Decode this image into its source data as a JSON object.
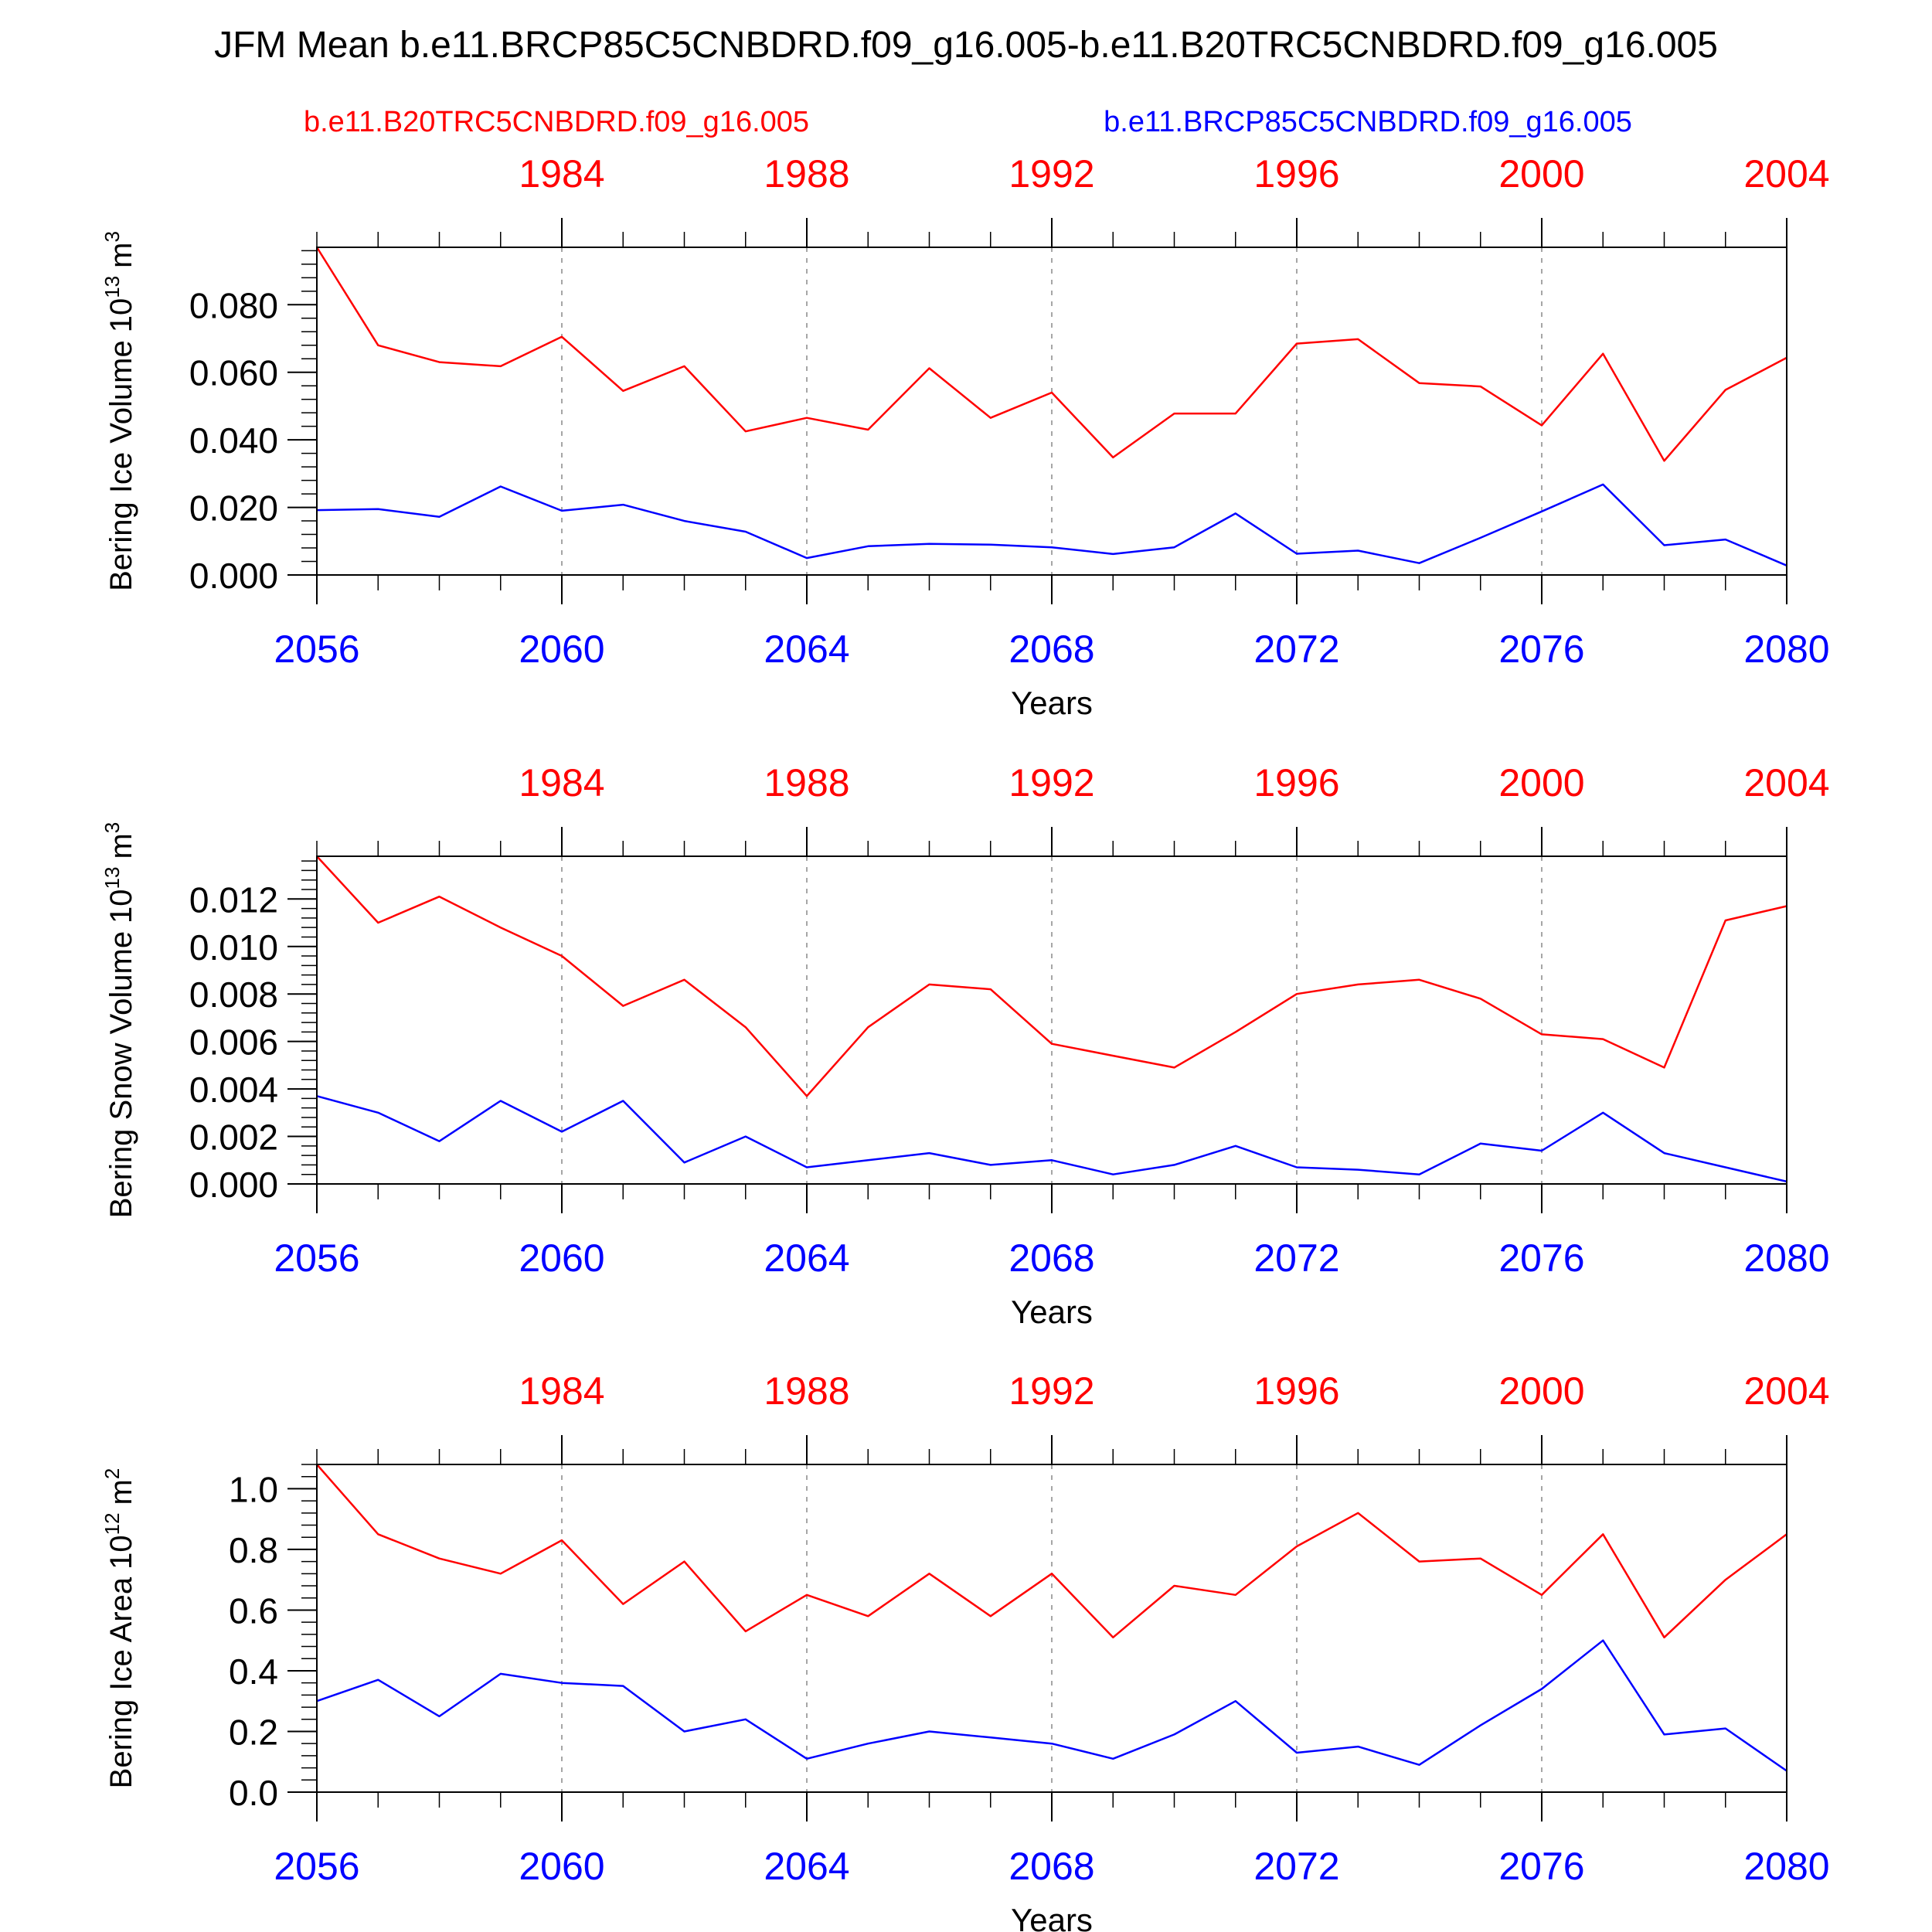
{
  "page_title": "JFM Mean b.e11.BRCP85C5CNBDRD.f09_g16.005-b.e11.B20TRC5CNBDRD.f09_g16.005",
  "legend": {
    "left_label": "b.e11.B20TRC5CNBDRD.f09_g16.005",
    "right_label": "b.e11.BRCP85C5CNBDRD.f09_g16.005"
  },
  "colors": {
    "historical": "#ff0000",
    "future": "#0000ff",
    "axis": "#000000",
    "grid": "#888888"
  },
  "chart_data": [
    {
      "type": "line",
      "title": "",
      "ylabel": "Bering Ice Volume",
      "ylabel_unit_base": "10",
      "ylabel_unit_exp": "13",
      "ylabel_unit_tail": "m",
      "ylabel_unit_tail_exp": "3",
      "xlabel": "Years",
      "xlim": [
        2056,
        2080
      ],
      "ylim": [
        0,
        0.097
      ],
      "ytick_values": [
        0,
        0.02,
        0.04,
        0.06,
        0.08
      ],
      "ytick_labels": [
        "0.000",
        "0.020",
        "0.040",
        "0.060",
        "0.080"
      ],
      "yminor_step": 0.004,
      "x_bottom_ticks": [
        2056,
        2060,
        2064,
        2068,
        2072,
        2076,
        2080
      ],
      "x_bottom_labels": [
        "2056",
        "2060",
        "2064",
        "2068",
        "2072",
        "2076",
        "2080"
      ],
      "x_top_labels": [
        "1984",
        "1988",
        "1992",
        "1996",
        "2000",
        "2004"
      ],
      "x_top_offset": 76,
      "grid_x": [
        2060,
        2064,
        2068,
        2072,
        2076
      ],
      "x": [
        2056,
        2057,
        2058,
        2059,
        2060,
        2061,
        2062,
        2063,
        2064,
        2065,
        2066,
        2067,
        2068,
        2069,
        2070,
        2071,
        2072,
        2073,
        2074,
        2075,
        2076,
        2077,
        2078,
        2079,
        2080
      ],
      "series": [
        {
          "name": "b.e11.B20TRC5CNBDRD.f09_g16.005",
          "color": "#ff0000",
          "values": [
            0.097,
            0.068,
            0.063,
            0.0618,
            0.0705,
            0.0545,
            0.0618,
            0.0425,
            0.0465,
            0.043,
            0.0612,
            0.0465,
            0.054,
            0.0348,
            0.0478,
            0.0478,
            0.0685,
            0.0698,
            0.0568,
            0.0558,
            0.0443,
            0.0655,
            0.0338,
            0.0548,
            0.0643
          ]
        },
        {
          "name": "b.e11.BRCP85C5CNBDRD.f09_g16.005",
          "color": "#0000ff",
          "values": [
            0.0192,
            0.0195,
            0.0172,
            0.0262,
            0.019,
            0.0208,
            0.016,
            0.0128,
            0.005,
            0.0085,
            0.0092,
            0.009,
            0.0082,
            0.0062,
            0.0082,
            0.0182,
            0.0063,
            0.0072,
            0.0035,
            0.011,
            0.0188,
            0.0268,
            0.0088,
            0.0105,
            0.0028
          ]
        }
      ]
    },
    {
      "type": "line",
      "title": "",
      "ylabel": "Bering Snow Volume",
      "ylabel_unit_base": "10",
      "ylabel_unit_exp": "13",
      "ylabel_unit_tail": "m",
      "ylabel_unit_tail_exp": "3",
      "xlabel": "Years",
      "xlim": [
        2056,
        2080
      ],
      "ylim": [
        0,
        0.0138
      ],
      "ytick_values": [
        0,
        0.002,
        0.004,
        0.006,
        0.008,
        0.01,
        0.012
      ],
      "ytick_labels": [
        "0.000",
        "0.002",
        "0.004",
        "0.006",
        "0.008",
        "0.010",
        "0.012"
      ],
      "yminor_step": 0.0004,
      "x_bottom_ticks": [
        2056,
        2060,
        2064,
        2068,
        2072,
        2076,
        2080
      ],
      "x_bottom_labels": [
        "2056",
        "2060",
        "2064",
        "2068",
        "2072",
        "2076",
        "2080"
      ],
      "x_top_labels": [
        "1984",
        "1988",
        "1992",
        "1996",
        "2000",
        "2004"
      ],
      "x_top_offset": 76,
      "grid_x": [
        2060,
        2064,
        2068,
        2072,
        2076
      ],
      "x": [
        2056,
        2057,
        2058,
        2059,
        2060,
        2061,
        2062,
        2063,
        2064,
        2065,
        2066,
        2067,
        2068,
        2069,
        2070,
        2071,
        2072,
        2073,
        2074,
        2075,
        2076,
        2077,
        2078,
        2079,
        2080
      ],
      "series": [
        {
          "name": "b.e11.B20TRC5CNBDRD.f09_g16.005",
          "color": "#ff0000",
          "values": [
            0.0138,
            0.011,
            0.0121,
            0.0108,
            0.0096,
            0.0075,
            0.0086,
            0.0066,
            0.0037,
            0.0066,
            0.0084,
            0.0082,
            0.0059,
            0.0054,
            0.0049,
            0.0064,
            0.008,
            0.0084,
            0.0086,
            0.0078,
            0.0063,
            0.0061,
            0.0049,
            0.0111,
            0.0117
          ]
        },
        {
          "name": "b.e11.BRCP85C5CNBDRD.f09_g16.005",
          "color": "#0000ff",
          "values": [
            0.0037,
            0.003,
            0.0018,
            0.0035,
            0.0022,
            0.0035,
            0.0009,
            0.002,
            0.0007,
            0.001,
            0.0013,
            0.0008,
            0.001,
            0.0004,
            0.0008,
            0.0016,
            0.0007,
            0.0006,
            0.0004,
            0.0017,
            0.0014,
            0.003,
            0.0013,
            0.0007,
            0.0001
          ]
        }
      ]
    },
    {
      "type": "line",
      "title": "",
      "ylabel": "Bering Ice Area",
      "ylabel_unit_base": "10",
      "ylabel_unit_exp": "12",
      "ylabel_unit_tail": "m",
      "ylabel_unit_tail_exp": "2",
      "xlabel": "Years",
      "xlim": [
        2056,
        2080
      ],
      "ylim": [
        0,
        1.08
      ],
      "ytick_values": [
        0,
        0.2,
        0.4,
        0.6,
        0.8,
        1.0
      ],
      "ytick_labels": [
        "0.0",
        "0.2",
        "0.4",
        "0.6",
        "0.8",
        "1.0"
      ],
      "yminor_step": 0.04,
      "x_bottom_ticks": [
        2056,
        2060,
        2064,
        2068,
        2072,
        2076,
        2080
      ],
      "x_bottom_labels": [
        "2056",
        "2060",
        "2064",
        "2068",
        "2072",
        "2076",
        "2080"
      ],
      "x_top_labels": [
        "1984",
        "1988",
        "1992",
        "1996",
        "2000",
        "2004"
      ],
      "x_top_offset": 76,
      "grid_x": [
        2060,
        2064,
        2068,
        2072,
        2076
      ],
      "x": [
        2056,
        2057,
        2058,
        2059,
        2060,
        2061,
        2062,
        2063,
        2064,
        2065,
        2066,
        2067,
        2068,
        2069,
        2070,
        2071,
        2072,
        2073,
        2074,
        2075,
        2076,
        2077,
        2078,
        2079,
        2080
      ],
      "series": [
        {
          "name": "b.e11.B20TRC5CNBDRD.f09_g16.005",
          "color": "#ff0000",
          "values": [
            1.08,
            0.85,
            0.77,
            0.72,
            0.83,
            0.62,
            0.76,
            0.53,
            0.65,
            0.58,
            0.72,
            0.58,
            0.72,
            0.51,
            0.68,
            0.65,
            0.81,
            0.92,
            0.76,
            0.77,
            0.65,
            0.85,
            0.51,
            0.7,
            0.85
          ]
        },
        {
          "name": "b.e11.BRCP85C5CNBDRD.f09_g16.005",
          "color": "#0000ff",
          "values": [
            0.3,
            0.37,
            0.25,
            0.39,
            0.36,
            0.35,
            0.2,
            0.24,
            0.11,
            0.16,
            0.2,
            0.18,
            0.16,
            0.11,
            0.19,
            0.3,
            0.13,
            0.15,
            0.09,
            0.22,
            0.34,
            0.5,
            0.19,
            0.21,
            0.07
          ]
        }
      ]
    }
  ]
}
